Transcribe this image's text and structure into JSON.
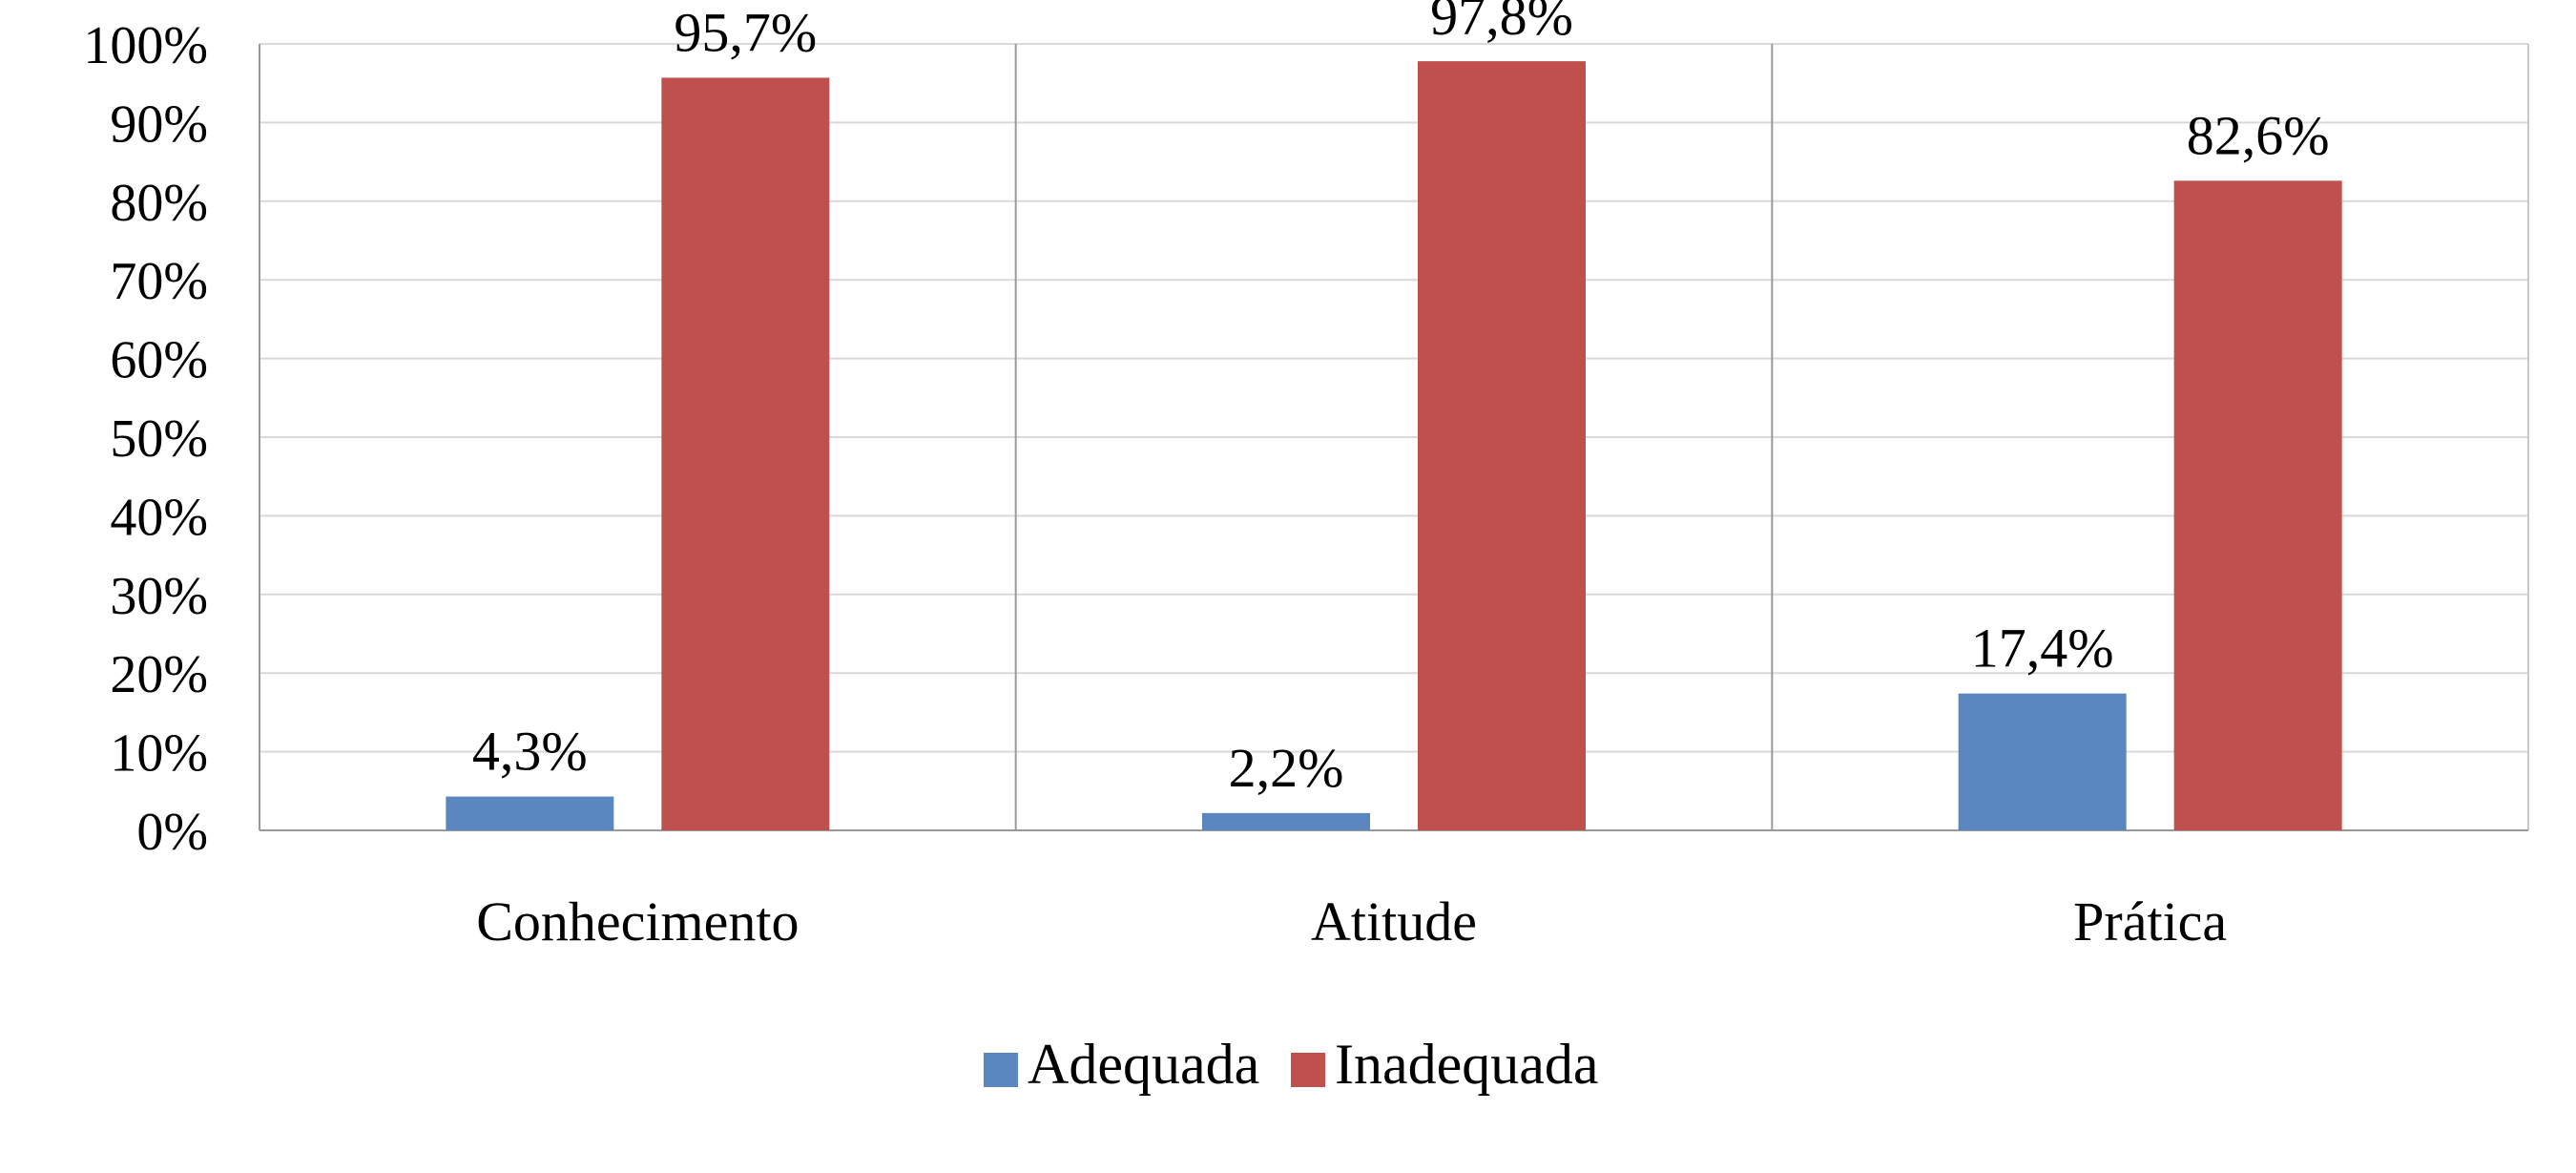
{
  "chart_data": {
    "type": "bar",
    "categories": [
      "Conhecimento",
      "Atitude",
      "Prática"
    ],
    "series": [
      {
        "name": "Adequada",
        "values": [
          4.3,
          2.2,
          17.4
        ],
        "labels": [
          "4,3%",
          "2,2%",
          "17,4%"
        ],
        "color": "#5B87C1"
      },
      {
        "name": "Inadequada",
        "values": [
          95.7,
          97.8,
          82.6
        ],
        "labels": [
          "95,7%",
          "97,8%",
          "82,6%"
        ],
        "color": "#C0504D"
      }
    ],
    "ylim": [
      0,
      100
    ],
    "yticks": [
      0,
      10,
      20,
      30,
      40,
      50,
      60,
      70,
      80,
      90,
      100
    ],
    "ytick_labels": [
      "0%",
      "10%",
      "20%",
      "30%",
      "40%",
      "50%",
      "60%",
      "70%",
      "80%",
      "90%",
      "100%"
    ],
    "grid": true,
    "legend_position": "bottom",
    "title": "",
    "xlabel": "",
    "ylabel": ""
  }
}
